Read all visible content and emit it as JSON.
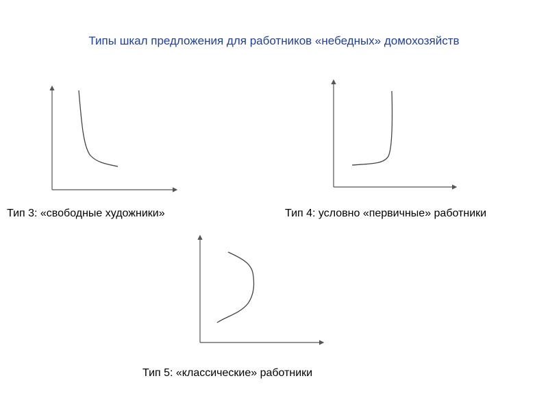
{
  "title": "Типы шкал предложения для работников «небедных» домохозяйств",
  "diagrams": [
    {
      "label": "Тип 3: «свободные художники»",
      "curve_shape": "decreasing convex"
    },
    {
      "label": "Тип 4: условно «первичные» работники",
      "curve_shape": "flat then vertical"
    },
    {
      "label": "Тип 5: «классические» работники",
      "curve_shape": "backward-bending"
    }
  ],
  "colors": {
    "title": "#1f3fa0",
    "lines": "#444444"
  }
}
